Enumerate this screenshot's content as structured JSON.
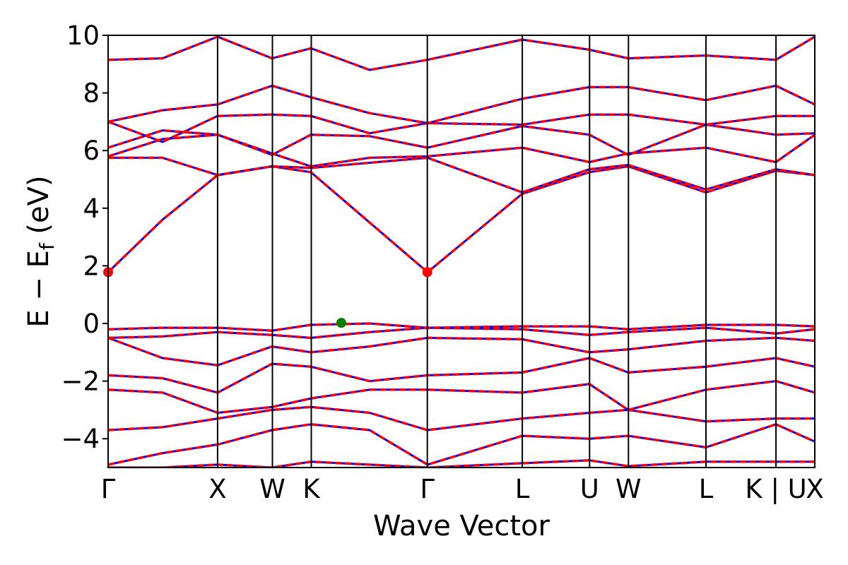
{
  "chart_data": {
    "type": "line",
    "title": "",
    "xlabel": "Wave Vector",
    "ylabel_main": "E − E",
    "ylabel_sub": "f",
    "ylabel_unit": " (eV)",
    "ylim": [
      -5,
      10
    ],
    "yticks": [
      "−4",
      "−2",
      "0",
      "2",
      "4",
      "6",
      "8",
      "10"
    ],
    "ytick_values": [
      -4,
      -2,
      0,
      2,
      4,
      6,
      8,
      10
    ],
    "xlim": [
      0,
      1
    ],
    "kpoints": [
      {
        "label": "Γ",
        "x": 0.0
      },
      {
        "label": "X",
        "x": 0.1549
      },
      {
        "label": "W",
        "x": 0.2325
      },
      {
        "label": "K",
        "x": 0.2875
      },
      {
        "label": "Γ",
        "x": 0.4517
      },
      {
        "label": "L",
        "x": 0.5861
      },
      {
        "label": "U",
        "x": 0.6813
      },
      {
        "label": "W",
        "x": 0.7363
      },
      {
        "label": "L",
        "x": 0.846
      },
      {
        "label": "K | U",
        "x": 0.9451
      },
      {
        "label": "X",
        "x": 1.0
      }
    ],
    "grid": false,
    "legend": "none",
    "line_colors": {
      "solid": "#0000ff",
      "dashed": "#ff0000"
    },
    "cbm": [
      {
        "x": 0.0,
        "y": 1.78
      },
      {
        "x": 0.4517,
        "y": 1.78
      }
    ],
    "vbm": [
      {
        "x": 0.33,
        "y": 0.02
      }
    ],
    "cbm_color": "#ff0000",
    "vbm_color": "#008000",
    "series": [
      {
        "x": [
          0,
          0.077,
          0.155,
          0.232,
          0.287,
          0.452,
          0.586,
          0.681,
          0.736,
          0.846,
          0.945,
          1.0
        ],
        "y": [
          1.78,
          3.6,
          5.15,
          5.45,
          5.25,
          1.78,
          4.5,
          5.25,
          5.45,
          4.55,
          5.3,
          5.15
        ]
      },
      {
        "x": [
          0,
          0.077,
          0.155,
          0.232,
          0.287,
          0.452,
          0.586,
          0.681,
          0.736,
          0.846,
          0.945,
          1.0
        ],
        "y": [
          5.75,
          5.75,
          5.15,
          5.45,
          5.4,
          5.75,
          4.55,
          5.35,
          5.5,
          4.65,
          5.35,
          5.15
        ]
      },
      {
        "x": [
          0,
          0.077,
          0.155,
          0.232,
          0.287,
          0.37,
          0.452,
          0.586,
          0.681,
          0.736,
          0.846,
          0.945,
          1.0
        ],
        "y": [
          5.8,
          6.4,
          6.55,
          5.9,
          5.45,
          5.75,
          5.8,
          6.1,
          5.6,
          5.9,
          6.1,
          5.6,
          6.55
        ]
      },
      {
        "x": [
          0,
          0.077,
          0.155,
          0.232,
          0.287,
          0.37,
          0.452,
          0.586,
          0.681,
          0.736,
          0.846,
          0.945,
          1.0
        ],
        "y": [
          6.1,
          6.7,
          6.55,
          5.85,
          6.55,
          6.5,
          6.1,
          6.85,
          6.55,
          5.85,
          6.9,
          6.55,
          6.6
        ]
      },
      {
        "x": [
          0,
          0.077,
          0.155,
          0.232,
          0.287,
          0.37,
          0.452,
          0.586,
          0.681,
          0.736,
          0.846,
          0.945,
          1.0
        ],
        "y": [
          7.0,
          6.3,
          7.2,
          7.25,
          7.2,
          6.6,
          6.95,
          6.9,
          7.25,
          7.25,
          6.9,
          7.2,
          7.2
        ]
      },
      {
        "x": [
          0,
          0.077,
          0.155,
          0.232,
          0.287,
          0.37,
          0.452,
          0.586,
          0.681,
          0.736,
          0.846,
          0.945,
          1.0
        ],
        "y": [
          7.0,
          7.4,
          7.6,
          8.25,
          7.85,
          7.3,
          6.95,
          7.8,
          8.2,
          8.2,
          7.75,
          8.25,
          7.6
        ]
      },
      {
        "x": [
          0,
          0.077,
          0.155,
          0.232,
          0.287,
          0.37,
          0.452,
          0.586,
          0.681,
          0.736,
          0.846,
          0.945,
          1.0
        ],
        "y": [
          9.15,
          9.2,
          9.95,
          9.2,
          9.55,
          8.8,
          9.15,
          9.85,
          9.5,
          9.2,
          9.3,
          9.15,
          9.95
        ]
      },
      {
        "x": [
          0,
          0.077,
          0.155,
          0.232,
          0.287,
          0.37,
          0.452,
          0.586,
          0.681,
          0.736,
          0.846,
          0.945,
          1.0
        ],
        "y": [
          -0.2,
          -0.15,
          -0.15,
          -0.25,
          -0.05,
          0.0,
          -0.15,
          -0.1,
          -0.1,
          -0.2,
          -0.05,
          -0.05,
          -0.1
        ]
      },
      {
        "x": [
          0,
          0.077,
          0.155,
          0.232,
          0.287,
          0.37,
          0.452,
          0.586,
          0.681,
          0.736,
          0.846,
          0.945,
          1.0
        ],
        "y": [
          -0.5,
          -0.45,
          -0.3,
          -0.4,
          -0.5,
          -0.3,
          -0.15,
          -0.2,
          -0.4,
          -0.3,
          -0.15,
          -0.35,
          -0.2
        ]
      },
      {
        "x": [
          0,
          0.077,
          0.155,
          0.232,
          0.287,
          0.37,
          0.452,
          0.586,
          0.681,
          0.736,
          0.846,
          0.945,
          1.0
        ],
        "y": [
          -0.5,
          -1.2,
          -1.45,
          -0.8,
          -1.0,
          -0.8,
          -0.5,
          -0.55,
          -1.0,
          -0.9,
          -0.6,
          -0.5,
          -0.6
        ]
      },
      {
        "x": [
          0,
          0.077,
          0.155,
          0.232,
          0.287,
          0.37,
          0.452,
          0.586,
          0.681,
          0.736,
          0.846,
          0.945,
          1.0
        ],
        "y": [
          -1.8,
          -1.9,
          -2.4,
          -1.4,
          -1.5,
          -2.0,
          -1.8,
          -1.7,
          -1.2,
          -1.7,
          -1.5,
          -1.2,
          -1.5
        ]
      },
      {
        "x": [
          0,
          0.077,
          0.155,
          0.232,
          0.287,
          0.37,
          0.452,
          0.586,
          0.681,
          0.736,
          0.846,
          0.945,
          1.0
        ],
        "y": [
          -2.3,
          -2.4,
          -3.1,
          -2.9,
          -2.6,
          -2.3,
          -2.3,
          -2.4,
          -2.1,
          -3.0,
          -2.3,
          -2.0,
          -2.4
        ]
      },
      {
        "x": [
          0,
          0.077,
          0.155,
          0.232,
          0.287,
          0.37,
          0.452,
          0.586,
          0.681,
          0.736,
          0.846,
          0.945,
          1.0
        ],
        "y": [
          -3.7,
          -3.6,
          -3.3,
          -3.0,
          -2.9,
          -3.1,
          -3.7,
          -3.3,
          -3.1,
          -3.0,
          -3.4,
          -3.3,
          -3.3
        ]
      },
      {
        "x": [
          0,
          0.077,
          0.155,
          0.232,
          0.287,
          0.37,
          0.452,
          0.586,
          0.681,
          0.736,
          0.846,
          0.945,
          1.0
        ],
        "y": [
          -4.9,
          -4.5,
          -4.2,
          -3.7,
          -3.5,
          -3.7,
          -4.9,
          -3.9,
          -4.0,
          -3.9,
          -4.3,
          -3.5,
          -4.1
        ]
      },
      {
        "x": [
          0,
          0.077,
          0.155,
          0.232,
          0.287,
          0.37,
          0.452,
          0.586,
          0.681,
          0.736,
          0.846,
          0.945,
          1.0
        ],
        "y": [
          -5.0,
          -5.0,
          -4.9,
          -5.0,
          -4.8,
          -4.9,
          -5.0,
          -4.85,
          -4.75,
          -4.95,
          -4.8,
          -4.8,
          -4.8
        ]
      }
    ]
  }
}
